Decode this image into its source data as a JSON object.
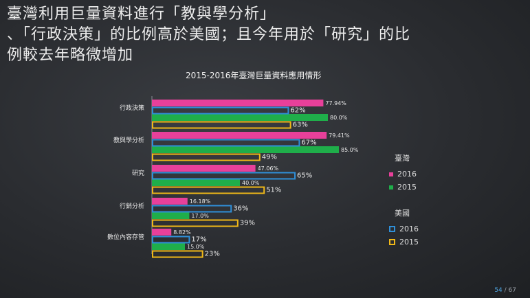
{
  "headline": {
    "line1": "臺灣利用巨量資料進行「教與學分析」",
    "line2": "、「行政決策」的比例高於美國；且今年用於「研究」的比",
    "line3": "例較去年略微增加"
  },
  "chart_data": {
    "type": "bar",
    "orientation": "horizontal",
    "title": "2015-2016年臺灣巨量資料應用情形",
    "categories": [
      "行政決策",
      "教與學分析",
      "研究",
      "行銷分析",
      "數位內容存管"
    ],
    "xlim": [
      0,
      100
    ],
    "series": [
      {
        "name": "2016",
        "group": "臺灣",
        "style": "filled",
        "color": "#e8409a",
        "values": [
          77.94,
          79.41,
          47.06,
          16.18,
          8.82
        ],
        "labels": [
          "77.94%",
          "79.41%",
          "47.06%",
          "16.18%",
          "8.82%"
        ]
      },
      {
        "name": "2016",
        "group": "美國",
        "style": "outline",
        "color": "#2f8fd8",
        "values": [
          62,
          67,
          65,
          36,
          17
        ],
        "labels": [
          "62%",
          "67%",
          "65%",
          "36%",
          "17%"
        ]
      },
      {
        "name": "2015",
        "group": "臺灣",
        "style": "filled",
        "color": "#1fae4a",
        "values": [
          80.0,
          85.0,
          40.0,
          17.0,
          15.0
        ],
        "labels": [
          "80.0%",
          "85.0%",
          "40.0%",
          "17.0%",
          "15.0%"
        ]
      },
      {
        "name": "2015",
        "group": "美國",
        "style": "outline",
        "color": "#f0b818",
        "values": [
          63,
          49,
          51,
          39,
          23
        ],
        "labels": [
          "63%",
          "49%",
          "51%",
          "39%",
          "23%"
        ]
      }
    ],
    "legend": {
      "groups": [
        {
          "title": "臺灣",
          "items": [
            {
              "label": "2016",
              "color": "#e8409a"
            },
            {
              "label": "2015",
              "color": "#1fae4a"
            }
          ]
        },
        {
          "title": "美國",
          "items": [
            {
              "label": "2016",
              "color": "#2f8fd8"
            },
            {
              "label": "2015",
              "color": "#f0b818"
            }
          ]
        }
      ],
      "placement": "right"
    }
  },
  "page": {
    "current": "54",
    "sep": " / ",
    "total": "67"
  }
}
